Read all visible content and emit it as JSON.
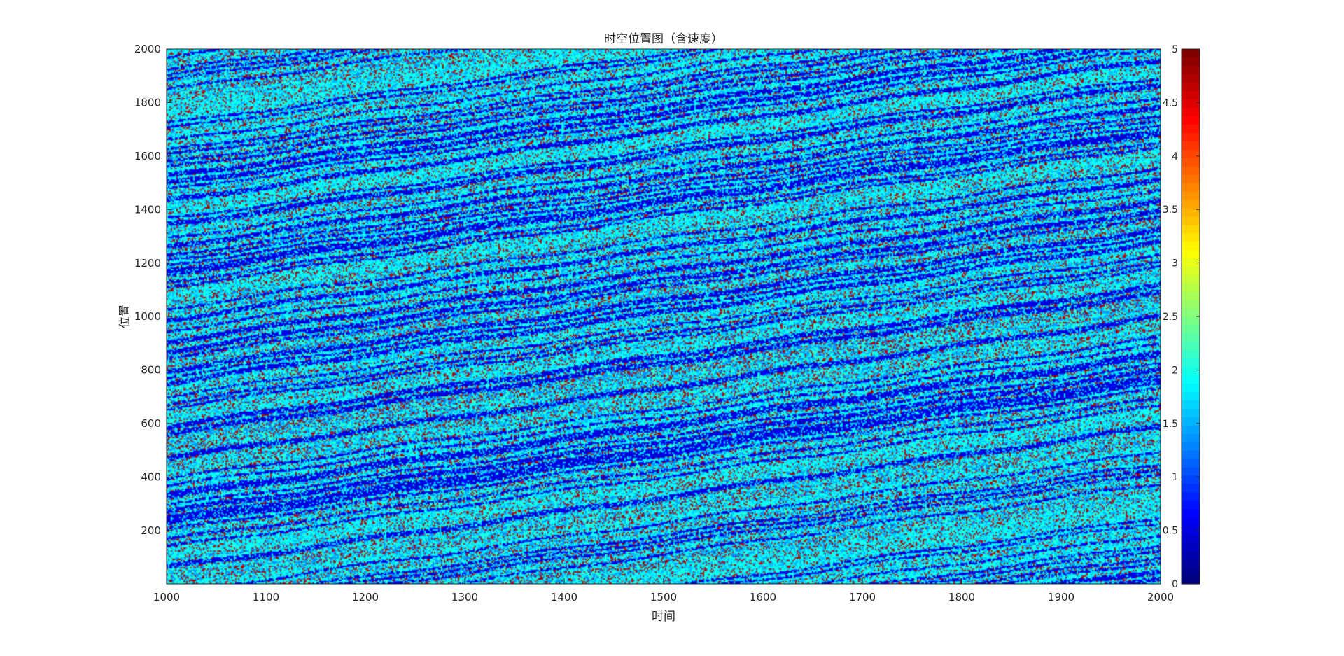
{
  "chart_data": {
    "type": "heatmap",
    "title": "时空位置图（含速度）",
    "xlabel": "时间",
    "ylabel": "位置",
    "xlim": [
      1000,
      2000
    ],
    "ylim": [
      1,
      2000
    ],
    "x_ticks": [
      "1000",
      "1100",
      "1200",
      "1300",
      "1400",
      "1500",
      "1600",
      "1700",
      "1800",
      "1900",
      "2000"
    ],
    "y_ticks": [
      "200",
      "400",
      "600",
      "800",
      "1000",
      "1200",
      "1400",
      "1600",
      "1800",
      "2000"
    ],
    "colorbar": {
      "colormap": "jet",
      "clim": [
        0,
        5
      ],
      "ticks": [
        "0",
        "0.5",
        "1",
        "1.5",
        "2",
        "2.5",
        "3",
        "3.5",
        "4",
        "4.5",
        "5"
      ]
    },
    "value_distribution": {
      "dominant_values": [
        1,
        2
      ],
      "occasional_values": [
        3,
        4,
        5
      ],
      "pattern": "diagonal stripes descending left-to-right (vehicle trajectories over time)"
    },
    "grid": false,
    "legend": "none"
  }
}
